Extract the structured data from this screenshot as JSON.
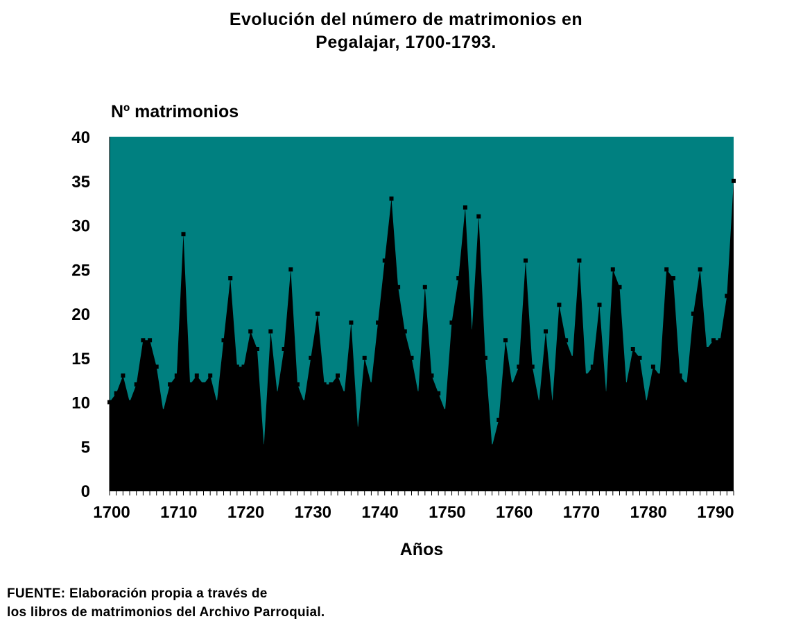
{
  "chart_data": {
    "type": "area",
    "title_lines": [
      "Evolución del número de matrimonios en",
      "Pegalajar, 1700-1793."
    ],
    "ylabel": "Nº matrimonios",
    "xlabel": "Años",
    "ylim": [
      0,
      40
    ],
    "yticks": [
      "0",
      "5",
      "10",
      "15",
      "20",
      "25",
      "30",
      "35",
      "40"
    ],
    "xlim": [
      1700,
      1793
    ],
    "xticks": [
      "1700",
      "1710",
      "1720",
      "1730",
      "1740",
      "1750",
      "1760",
      "1770",
      "1780",
      "1790"
    ],
    "grid": false,
    "colors": {
      "plot_background": "#008080",
      "area": "#000000",
      "markers": "#000000"
    },
    "x": [
      1700,
      1701,
      1702,
      1703,
      1704,
      1705,
      1706,
      1707,
      1708,
      1709,
      1710,
      1711,
      1712,
      1713,
      1714,
      1715,
      1716,
      1717,
      1718,
      1719,
      1720,
      1721,
      1722,
      1723,
      1724,
      1725,
      1726,
      1727,
      1728,
      1729,
      1730,
      1731,
      1732,
      1733,
      1734,
      1735,
      1736,
      1737,
      1738,
      1739,
      1740,
      1741,
      1742,
      1743,
      1744,
      1745,
      1746,
      1747,
      1748,
      1749,
      1750,
      1751,
      1752,
      1753,
      1754,
      1755,
      1756,
      1757,
      1758,
      1759,
      1760,
      1761,
      1762,
      1763,
      1764,
      1765,
      1766,
      1767,
      1768,
      1769,
      1770,
      1771,
      1772,
      1773,
      1774,
      1775,
      1776,
      1777,
      1778,
      1779,
      1780,
      1781,
      1782,
      1783,
      1784,
      1785,
      1786,
      1787,
      1788,
      1789,
      1790,
      1791,
      1792,
      1793
    ],
    "values": [
      10,
      11,
      13,
      10,
      12,
      17,
      17,
      14,
      9,
      12,
      13,
      29,
      12,
      13,
      12,
      13,
      10,
      17,
      24,
      14,
      14,
      18,
      16,
      5,
      18,
      11,
      16,
      25,
      12,
      10,
      15,
      20,
      12,
      12,
      13,
      11,
      19,
      7,
      15,
      12,
      19,
      26,
      33,
      23,
      18,
      15,
      11,
      23,
      13,
      11,
      9,
      19,
      24,
      32,
      18,
      31,
      15,
      5,
      8,
      17,
      12,
      14,
      26,
      14,
      10,
      18,
      10,
      21,
      17,
      15,
      26,
      13,
      14,
      21,
      11,
      25,
      23,
      12,
      16,
      15,
      10,
      14,
      13,
      25,
      24,
      13,
      12,
      20,
      25,
      16,
      17,
      17,
      22,
      35
    ]
  },
  "source_lines": [
    "FUENTE: Elaboración propia a través de",
    "los libros de matrimonios del Archivo Parroquial."
  ]
}
